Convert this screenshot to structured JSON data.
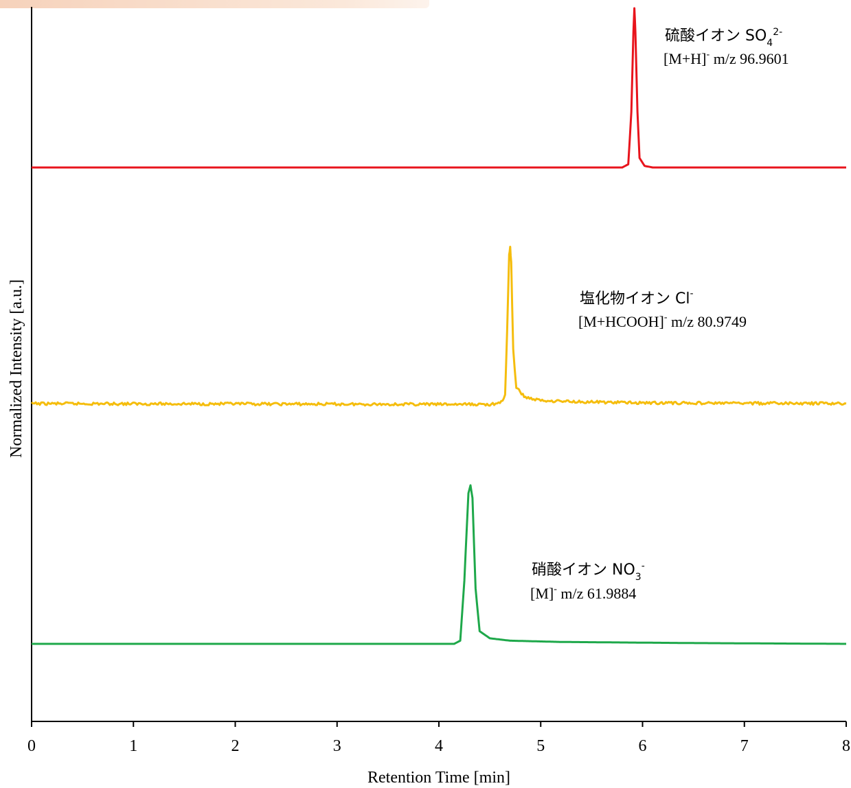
{
  "chart_data": {
    "type": "line",
    "title": "",
    "xlabel": "Retention Time [min]",
    "ylabel": "Normalized Intensity [a.u.]",
    "xlim": [
      0,
      8
    ],
    "x_ticks": [
      "0",
      "1",
      "2",
      "3",
      "4",
      "5",
      "6",
      "7",
      "8"
    ],
    "y_ticks": [],
    "grid": false,
    "legend": "none",
    "series": [
      {
        "name": "硫酸イオン SO42-",
        "color": "#e8141c",
        "baseline": 0.0,
        "apex_x": 5.92,
        "apex_y": 1.0,
        "points": [
          [
            0,
            0
          ],
          [
            5.8,
            0
          ],
          [
            5.86,
            0.02
          ],
          [
            5.89,
            0.35
          ],
          [
            5.91,
            0.85
          ],
          [
            5.92,
            1.0
          ],
          [
            5.93,
            0.85
          ],
          [
            5.95,
            0.35
          ],
          [
            5.97,
            0.06
          ],
          [
            6.02,
            0.01
          ],
          [
            6.1,
            0
          ],
          [
            8,
            0
          ]
        ]
      },
      {
        "name": "塩化物イオン Cl-",
        "color": "#f5bd0d",
        "baseline": 0.0,
        "apex_x": 4.7,
        "apex_y": 1.0,
        "points": [
          [
            0,
            0
          ],
          [
            4.5,
            -0.005
          ],
          [
            4.6,
            0
          ],
          [
            4.65,
            0.05
          ],
          [
            4.67,
            0.45
          ],
          [
            4.69,
            0.95
          ],
          [
            4.7,
            1.0
          ],
          [
            4.71,
            0.9
          ],
          [
            4.73,
            0.35
          ],
          [
            4.76,
            0.1
          ],
          [
            4.85,
            0.04
          ],
          [
            5.0,
            0.02
          ],
          [
            5.5,
            0.01
          ],
          [
            6.0,
            0.005
          ],
          [
            8,
            0
          ]
        ]
      },
      {
        "name": "硝酸イオン NO3-",
        "color": "#1ea84a",
        "baseline": 0.0,
        "apex_x": 4.31,
        "apex_y": 1.0,
        "points": [
          [
            0,
            0
          ],
          [
            4.15,
            0
          ],
          [
            4.21,
            0.02
          ],
          [
            4.25,
            0.4
          ],
          [
            4.29,
            0.95
          ],
          [
            4.31,
            1.0
          ],
          [
            4.33,
            0.92
          ],
          [
            4.36,
            0.35
          ],
          [
            4.4,
            0.08
          ],
          [
            4.5,
            0.035
          ],
          [
            4.7,
            0.02
          ],
          [
            5.2,
            0.012
          ],
          [
            6.5,
            0.005
          ],
          [
            8,
            0
          ]
        ]
      }
    ],
    "annotations": [
      {
        "line1": "硫酸イオン SO",
        "sub": "4",
        "sup": "2-",
        "line2_pre": "[M+H]",
        "line2_sup": "-",
        "line2_post": " m/z 96.9601"
      },
      {
        "line1": "塩化物イオン Cl",
        "sub": "",
        "sup": "-",
        "line2_pre": "[M+HCOOH]",
        "line2_sup": "-",
        "line2_post": " m/z 80.9749"
      },
      {
        "line1": "硝酸イオン NO",
        "sub": "3",
        "sup": "-",
        "line2_pre": "[M]",
        "line2_sup": "-",
        "line2_post": " m/z 61.9884"
      }
    ]
  }
}
